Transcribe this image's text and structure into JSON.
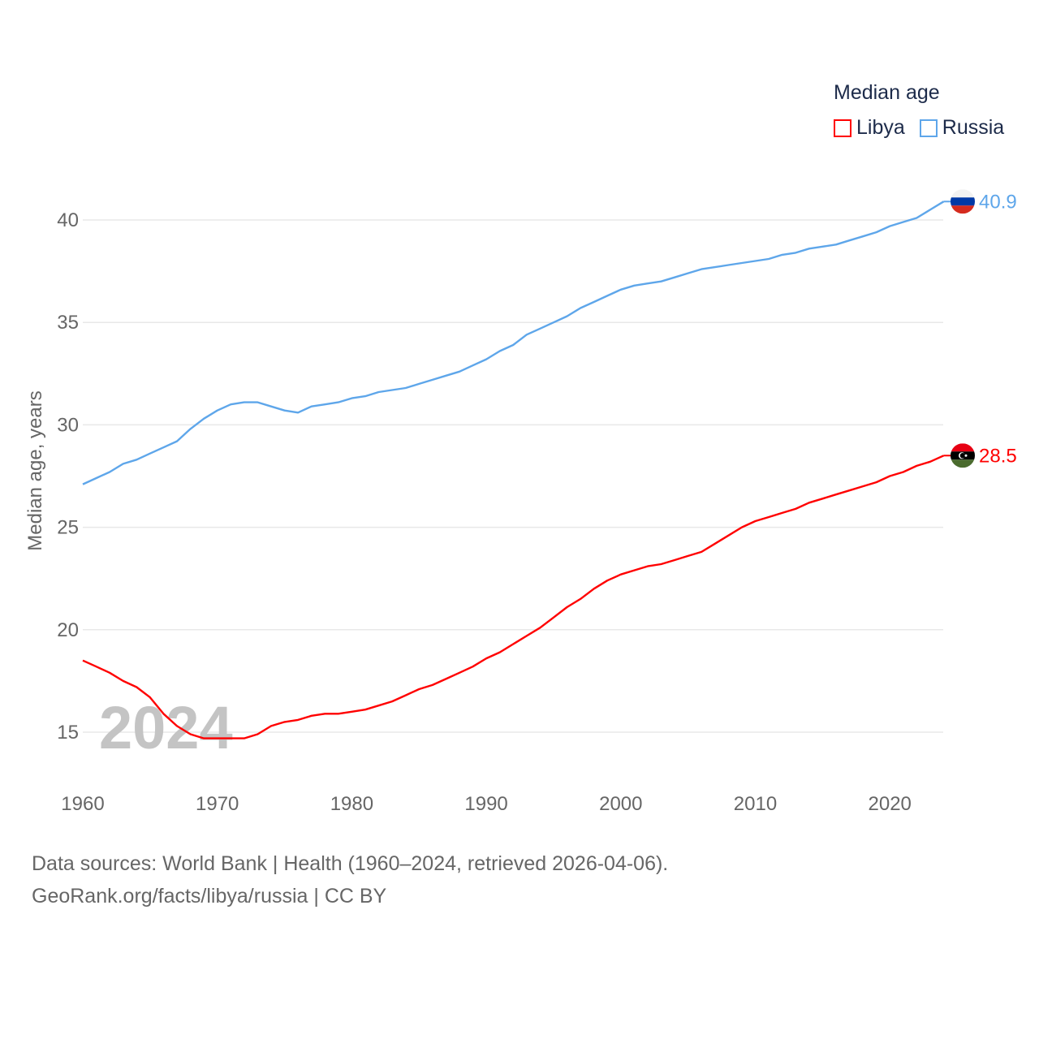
{
  "chart_data": {
    "type": "line",
    "title": "",
    "xlabel": "",
    "ylabel": "Median age, years",
    "xlim": [
      1960,
      2024
    ],
    "ylim": [
      13,
      42
    ],
    "grid": true,
    "yticks": [
      15,
      20,
      25,
      30,
      35,
      40
    ],
    "xticks": [
      1960,
      1970,
      1980,
      1990,
      2000,
      2010,
      2020
    ],
    "watermark_year": "2024",
    "legend": {
      "title": "Median age",
      "position": "top-right"
    },
    "x_start": 1960,
    "series": [
      {
        "name": "Libya",
        "color": "#ff0000",
        "flag": "libya-flag",
        "end_label": "28.5",
        "values": [
          18.5,
          18.2,
          17.9,
          17.5,
          17.2,
          16.7,
          15.9,
          15.3,
          14.9,
          14.7,
          14.7,
          14.7,
          14.7,
          14.9,
          15.3,
          15.5,
          15.6,
          15.8,
          15.9,
          15.9,
          16.0,
          16.1,
          16.3,
          16.5,
          16.8,
          17.1,
          17.3,
          17.6,
          17.9,
          18.2,
          18.6,
          18.9,
          19.3,
          19.7,
          20.1,
          20.6,
          21.1,
          21.5,
          22.0,
          22.4,
          22.7,
          22.9,
          23.1,
          23.2,
          23.4,
          23.6,
          23.8,
          24.2,
          24.6,
          25.0,
          25.3,
          25.5,
          25.7,
          25.9,
          26.2,
          26.4,
          26.6,
          26.8,
          27.0,
          27.2,
          27.5,
          27.7,
          28.0,
          28.2,
          28.5
        ]
      },
      {
        "name": "Russia",
        "color": "#5ea6ea",
        "flag": "russia-flag",
        "end_label": "40.9",
        "values": [
          27.1,
          27.4,
          27.7,
          28.1,
          28.3,
          28.6,
          28.9,
          29.2,
          29.8,
          30.3,
          30.7,
          31.0,
          31.1,
          31.1,
          30.9,
          30.7,
          30.6,
          30.9,
          31.0,
          31.1,
          31.3,
          31.4,
          31.6,
          31.7,
          31.8,
          32.0,
          32.2,
          32.4,
          32.6,
          32.9,
          33.2,
          33.6,
          33.9,
          34.4,
          34.7,
          35.0,
          35.3,
          35.7,
          36.0,
          36.3,
          36.6,
          36.8,
          36.9,
          37.0,
          37.2,
          37.4,
          37.6,
          37.7,
          37.8,
          37.9,
          38.0,
          38.1,
          38.3,
          38.4,
          38.6,
          38.7,
          38.8,
          39.0,
          39.2,
          39.4,
          39.7,
          39.9,
          40.1,
          40.5,
          40.9
        ]
      }
    ]
  },
  "footer": {
    "line1": "Data sources: World Bank | Health (1960–2024, retrieved 2026-04-06).",
    "line2": "GeoRank.org/facts/libya/russia | CC BY"
  }
}
